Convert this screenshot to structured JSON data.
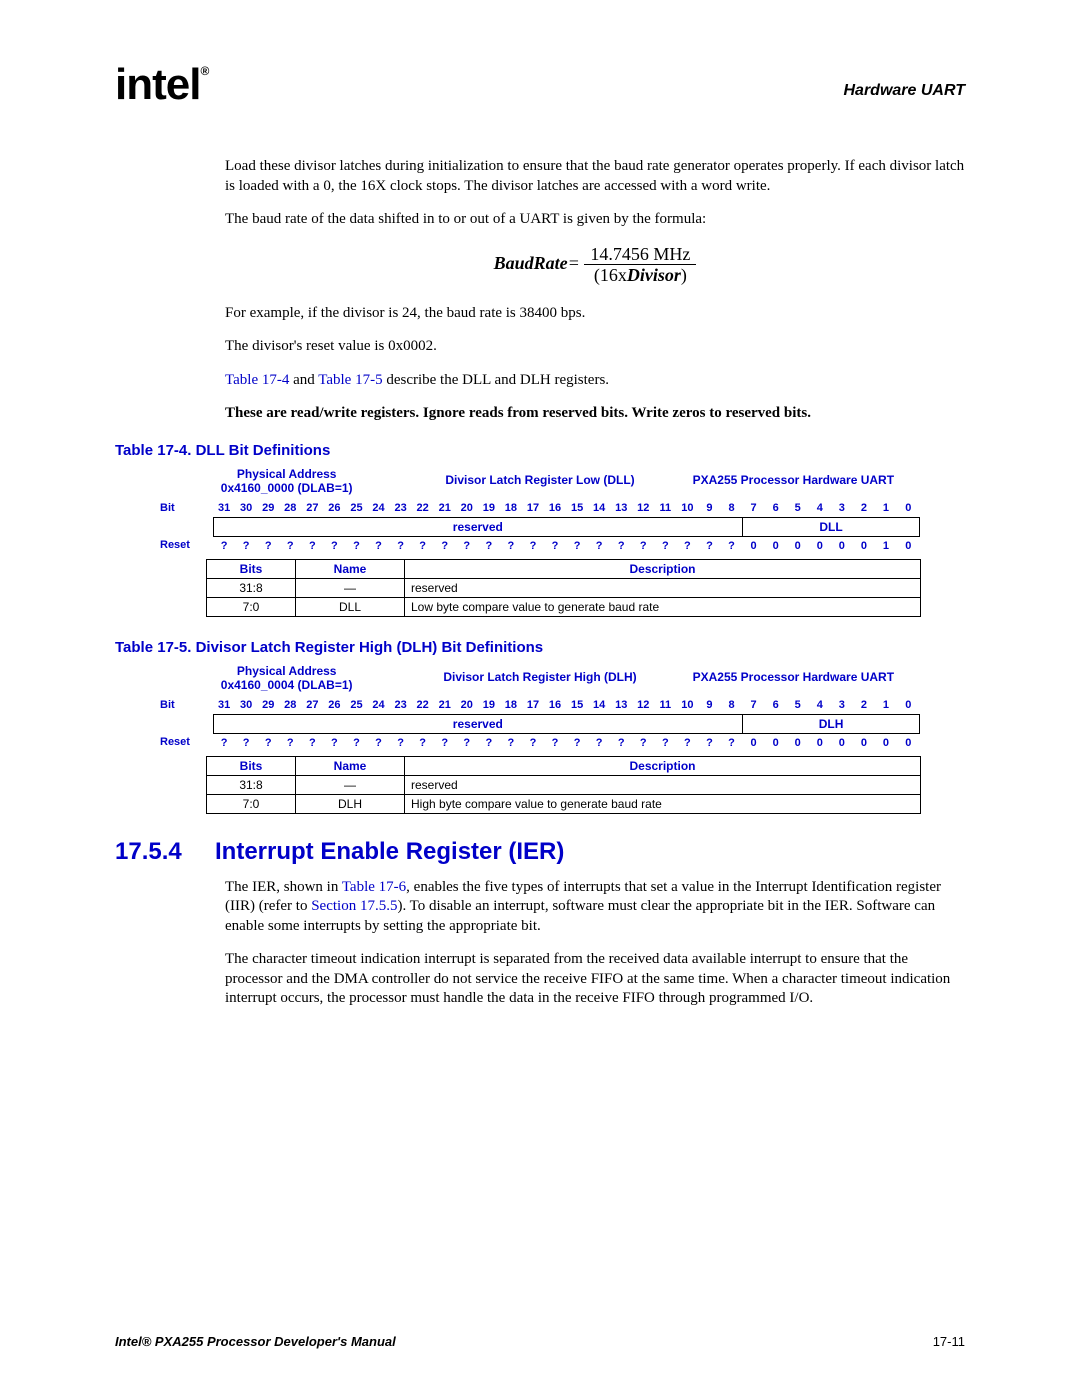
{
  "header": {
    "logo_main": "int",
    "logo_e": "e",
    "logo_l": "l",
    "logo_r": "®",
    "title": "Hardware UART"
  },
  "para1": "Load these divisor latches during initialization to ensure that the baud rate generator operates properly. If each divisor latch is loaded with a 0, the 16X clock stops. The divisor latches are accessed with a word write.",
  "para2": "The baud rate of the data shifted in to or out of a UART is given by the formula:",
  "formula": {
    "lhs": "BaudRate",
    "eq": "=",
    "num": "14.7456 MHz",
    "den_l": "(16x",
    "den_i": "Divisor",
    "den_r": ")"
  },
  "para3": "For example, if the divisor is 24, the baud rate is 38400 bps.",
  "para4": "The divisor's reset value is 0x0002.",
  "para5a": "Table 17-4",
  "para5b": " and ",
  "para5c": "Table 17-5",
  "para5d": " describe the DLL and DLH registers.",
  "note": "These are read/write registers. Ignore reads from reserved bits. Write zeros to reserved bits.",
  "table1": {
    "title": "Table 17-4. DLL Bit Definitions",
    "hdr_addr_l1": "Physical Address",
    "hdr_addr_l2": "0x4160_0000 (DLAB=1)",
    "hdr_reg": "Divisor Latch Register Low (DLL)",
    "hdr_proc": "PXA255 Processor Hardware UART",
    "bit_label": "Bit",
    "reset_label": "Reset",
    "bits": [
      "31",
      "30",
      "29",
      "28",
      "27",
      "26",
      "25",
      "24",
      "23",
      "22",
      "21",
      "20",
      "19",
      "18",
      "17",
      "16",
      "15",
      "14",
      "13",
      "12",
      "11",
      "10",
      "9",
      "8",
      "7",
      "6",
      "5",
      "4",
      "3",
      "2",
      "1",
      "0"
    ],
    "field_reserved": "reserved",
    "field_name": "DLL",
    "reset_vals": [
      "?",
      "?",
      "?",
      "?",
      "?",
      "?",
      "?",
      "?",
      "?",
      "?",
      "?",
      "?",
      "?",
      "?",
      "?",
      "?",
      "?",
      "?",
      "?",
      "?",
      "?",
      "?",
      "?",
      "?",
      "0",
      "0",
      "0",
      "0",
      "0",
      "0",
      "1",
      "0"
    ],
    "desc_h_bits": "Bits",
    "desc_h_name": "Name",
    "desc_h_desc": "Description",
    "rows": [
      {
        "bits": "31:8",
        "name": "—",
        "desc": "reserved"
      },
      {
        "bits": "7:0",
        "name": "DLL",
        "desc": "Low byte compare value to generate baud rate"
      }
    ]
  },
  "table2": {
    "title": "Table 17-5. Divisor Latch Register High (DLH) Bit Definitions",
    "hdr_addr_l1": "Physical Address",
    "hdr_addr_l2": "0x4160_0004 (DLAB=1)",
    "hdr_reg": "Divisor Latch Register High (DLH)",
    "hdr_proc": "PXA255 Processor Hardware UART",
    "bit_label": "Bit",
    "reset_label": "Reset",
    "bits": [
      "31",
      "30",
      "29",
      "28",
      "27",
      "26",
      "25",
      "24",
      "23",
      "22",
      "21",
      "20",
      "19",
      "18",
      "17",
      "16",
      "15",
      "14",
      "13",
      "12",
      "11",
      "10",
      "9",
      "8",
      "7",
      "6",
      "5",
      "4",
      "3",
      "2",
      "1",
      "0"
    ],
    "field_reserved": "reserved",
    "field_name": "DLH",
    "reset_vals": [
      "?",
      "?",
      "?",
      "?",
      "?",
      "?",
      "?",
      "?",
      "?",
      "?",
      "?",
      "?",
      "?",
      "?",
      "?",
      "?",
      "?",
      "?",
      "?",
      "?",
      "?",
      "?",
      "?",
      "?",
      "0",
      "0",
      "0",
      "0",
      "0",
      "0",
      "0",
      "0"
    ],
    "desc_h_bits": "Bits",
    "desc_h_name": "Name",
    "desc_h_desc": "Description",
    "rows": [
      {
        "bits": "31:8",
        "name": "—",
        "desc": "reserved"
      },
      {
        "bits": "7:0",
        "name": "DLH",
        "desc": "High byte compare value to generate baud rate"
      }
    ]
  },
  "section": {
    "num": "17.5.4",
    "title": "Interrupt Enable Register (IER)"
  },
  "para6a": "The IER, shown in ",
  "para6b": "Table 17-6",
  "para6c": ", enables the five types of interrupts that set a value in the Interrupt Identification register (IIR) (refer to ",
  "para6d": "Section 17.5.5",
  "para6e": "). To disable an interrupt, software must clear the appropriate bit in the IER. Software can enable some interrupts by setting the appropriate bit.",
  "para7": "The character timeout indication interrupt is separated from the received data available interrupt to ensure that the processor and the DMA controller do not service the receive FIFO at the same time. When a character timeout indication interrupt occurs, the processor must handle the data in the receive FIFO through programmed I/O.",
  "footer": {
    "left": "Intel® PXA255 Processor Developer's Manual",
    "right": "17-11"
  }
}
